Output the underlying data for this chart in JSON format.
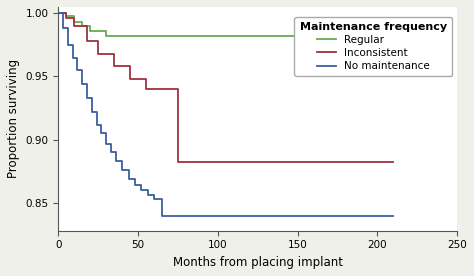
{
  "xlabel": "Months from placing implant",
  "ylabel": "Proportion surviving",
  "xlim": [
    0,
    250
  ],
  "ylim": [
    0.828,
    1.005
  ],
  "yticks": [
    0.85,
    0.9,
    0.95,
    1.0
  ],
  "xticks": [
    0,
    50,
    100,
    150,
    200,
    250
  ],
  "legend_title": "Maintenance frequency",
  "legend_labels": [
    "Regular",
    "Inconsistent",
    "No maintenance"
  ],
  "legend_colors": [
    "#6aaa4f",
    "#a03040",
    "#3a5fa0"
  ],
  "green_x": [
    0,
    5,
    10,
    15,
    20,
    30,
    210
  ],
  "green_y": [
    1.0,
    0.998,
    0.993,
    0.99,
    0.986,
    0.982,
    0.982
  ],
  "red_x": [
    0,
    5,
    10,
    18,
    25,
    35,
    45,
    55,
    65,
    75,
    210
  ],
  "red_y": [
    1.0,
    0.996,
    0.99,
    0.978,
    0.968,
    0.958,
    0.948,
    0.94,
    0.94,
    0.882,
    0.882
  ],
  "blue_x": [
    0,
    3,
    6,
    9,
    12,
    15,
    18,
    21,
    24,
    27,
    30,
    33,
    36,
    40,
    44,
    48,
    52,
    56,
    60,
    65,
    210
  ],
  "blue_y": [
    1.0,
    0.988,
    0.975,
    0.965,
    0.955,
    0.944,
    0.933,
    0.922,
    0.912,
    0.905,
    0.897,
    0.89,
    0.883,
    0.876,
    0.869,
    0.864,
    0.86,
    0.856,
    0.853,
    0.84,
    0.84
  ],
  "background_color": "#f0f0eb",
  "plot_bg": "#ffffff",
  "linewidth": 1.3,
  "legend_fontsize": 7.5,
  "legend_title_fontsize": 8,
  "axis_fontsize": 8.5,
  "tick_fontsize": 7.5
}
